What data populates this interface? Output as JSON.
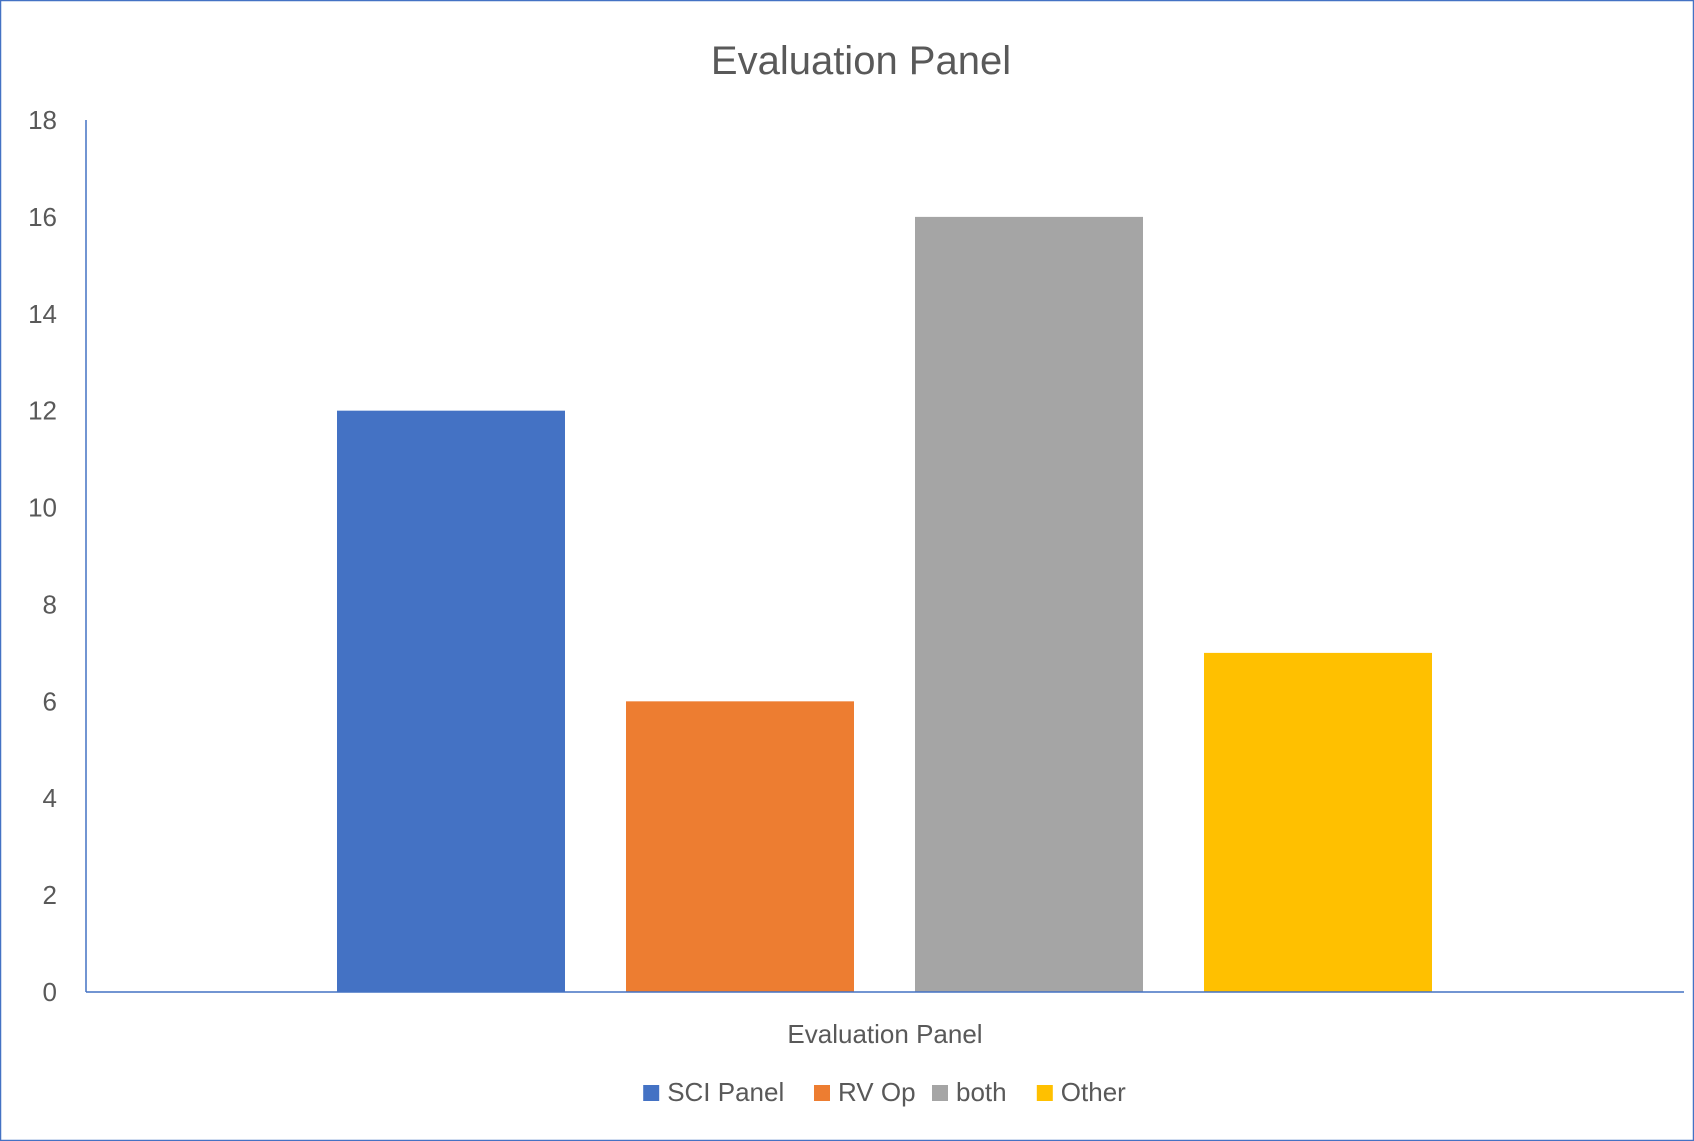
{
  "chart_data": {
    "type": "bar",
    "title": "Evaluation Panel",
    "xlabel": "Evaluation Panel",
    "ylabel": "",
    "categories": [
      "Evaluation Panel"
    ],
    "series": [
      {
        "name": "SCI Panel",
        "values": [
          12
        ],
        "color": "#4472C4"
      },
      {
        "name": "RV Op",
        "values": [
          6
        ],
        "color": "#ED7D31"
      },
      {
        "name": "both",
        "values": [
          16
        ],
        "color": "#A5A5A5"
      },
      {
        "name": "Other",
        "values": [
          7
        ],
        "color": "#FFC000"
      }
    ],
    "ylim": [
      0,
      18
    ],
    "yticks": [
      "0",
      "2",
      "4",
      "6",
      "8",
      "10",
      "12",
      "14",
      "16",
      "18"
    ],
    "grid": false,
    "legend": "bottom"
  },
  "colors": {
    "axis": "#4472C4",
    "border": "#4472C4",
    "text": "#595959"
  }
}
